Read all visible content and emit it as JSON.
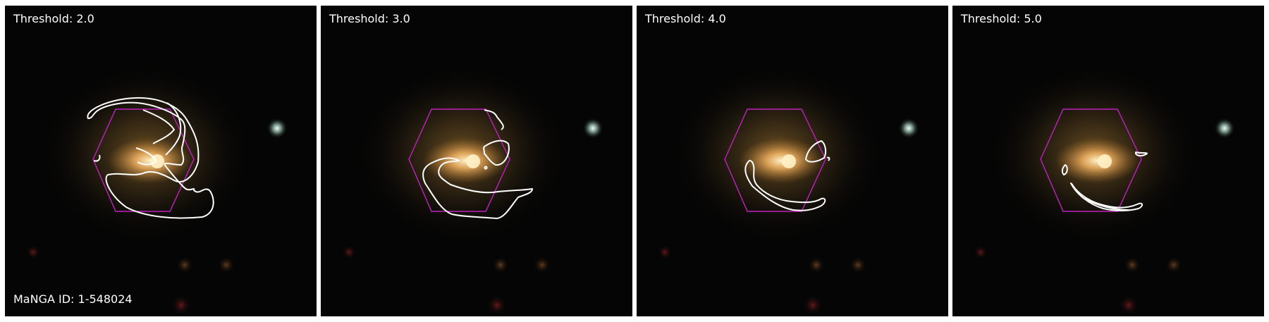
{
  "panels": [
    {
      "threshold_label": "Threshold: 2.0",
      "manga_label": "MaNGA ID: 1-548024"
    },
    {
      "threshold_label": "Threshold: 3.0"
    },
    {
      "threshold_label": "Threshold: 4.0"
    },
    {
      "threshold_label": "Threshold: 5.0"
    }
  ],
  "colors": {
    "background": "#050505",
    "hexagon": "#c020c0",
    "contour": "#ffffff",
    "galaxy_core": "#fff2c8",
    "galaxy_halo": "#c8903c",
    "star": "#d8f0e8"
  },
  "overlays": [
    "ifu-hexagon",
    "contour-lines"
  ]
}
